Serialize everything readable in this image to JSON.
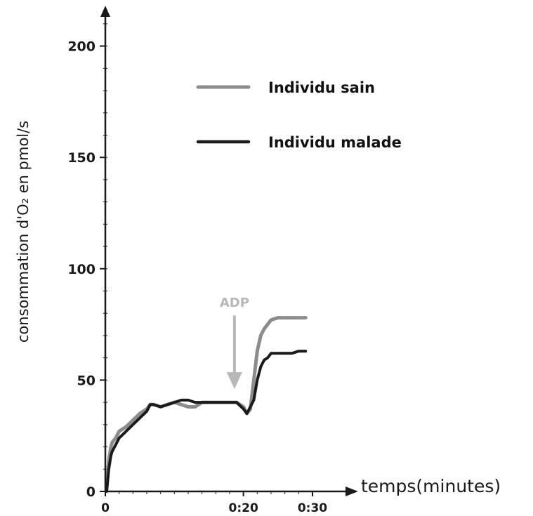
{
  "chart_data": {
    "type": "line",
    "title": "",
    "xlabel": "temps(minutes)",
    "ylabel": "consommation d'O₂ en pmol/s",
    "xlim": [
      0,
      36
    ],
    "ylim": [
      0,
      215
    ],
    "y_ticks": [
      0,
      50,
      100,
      150,
      200
    ],
    "x_ticks": [
      {
        "value": 0,
        "label": "0"
      },
      {
        "value": 20,
        "label": "0:20"
      },
      {
        "value": 30,
        "label": "0:30"
      }
    ],
    "legend_position": "top-right",
    "series": [
      {
        "name": "Individu sain",
        "color": "#8c8c8c",
        "x": [
          0.2,
          0.5,
          0.8,
          1,
          1.5,
          2,
          3,
          4,
          5,
          6,
          6.5,
          7,
          8,
          9,
          10,
          11,
          12,
          13,
          14,
          15,
          16,
          17,
          18,
          19,
          20,
          20.5,
          21,
          21.5,
          22,
          22.5,
          23,
          23.5,
          24,
          25,
          26,
          27,
          28,
          29
        ],
        "y": [
          2,
          14,
          20,
          22,
          24,
          27,
          29,
          32,
          35,
          37,
          39,
          39,
          38,
          39,
          40,
          39,
          38,
          38,
          40,
          40,
          40,
          40,
          40,
          40,
          38,
          35,
          37,
          50,
          63,
          70,
          73,
          75,
          77,
          78,
          78,
          78,
          78,
          78
        ]
      },
      {
        "name": "Individu malade",
        "color": "#1a1a1a",
        "x": [
          0.2,
          0.5,
          0.8,
          1,
          1.5,
          2,
          3,
          4,
          5,
          6,
          6.5,
          7,
          8,
          9,
          10,
          11,
          12,
          13,
          14,
          15,
          16,
          17,
          18,
          19,
          20,
          20.5,
          21,
          21.5,
          22,
          22.5,
          23,
          23.5,
          24,
          25,
          26,
          27,
          28,
          29
        ],
        "y": [
          0,
          10,
          16,
          18,
          21,
          24,
          27,
          30,
          33,
          36,
          39,
          39,
          38,
          39,
          40,
          41,
          41,
          40,
          40,
          40,
          40,
          40,
          40,
          40,
          37,
          35,
          38,
          41,
          50,
          56,
          59,
          60,
          62,
          62,
          62,
          62,
          63,
          63
        ]
      }
    ],
    "annotations": [
      {
        "text": "ADP",
        "x": 18.7,
        "y_from": 79,
        "y_to": 46,
        "color": "#b8b8b8"
      }
    ]
  }
}
